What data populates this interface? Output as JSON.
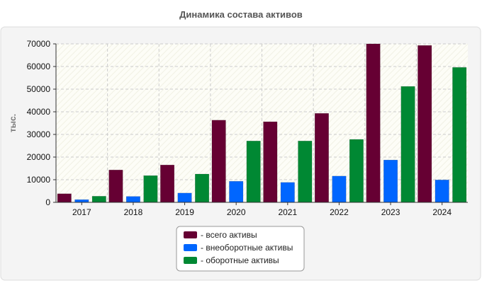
{
  "chart_data": {
    "type": "bar",
    "title": "Динамика состава активов",
    "xlabel": "",
    "ylabel": "тыс.",
    "categories": [
      "2017",
      "2018",
      "2019",
      "2020",
      "2021",
      "2022",
      "2023",
      "2024"
    ],
    "ylim": [
      0,
      70000
    ],
    "yticks": [
      0,
      10000,
      20000,
      30000,
      40000,
      50000,
      60000,
      70000
    ],
    "series": [
      {
        "name": "всего активы",
        "color": "#660033",
        "values": [
          3800,
          14300,
          16500,
          36300,
          35600,
          39300,
          70000,
          69300
        ]
      },
      {
        "name": "внеоборотные активы",
        "color": "#0066ff",
        "values": [
          1200,
          2600,
          4100,
          9300,
          8800,
          11600,
          18700,
          9900
        ]
      },
      {
        "name": "оборотные активы",
        "color": "#008833",
        "values": [
          2700,
          11800,
          12500,
          27100,
          27100,
          27800,
          51200,
          59600
        ]
      }
    ],
    "legend_position": "bottom-center",
    "legend_prefix": "- ",
    "grid": true
  }
}
